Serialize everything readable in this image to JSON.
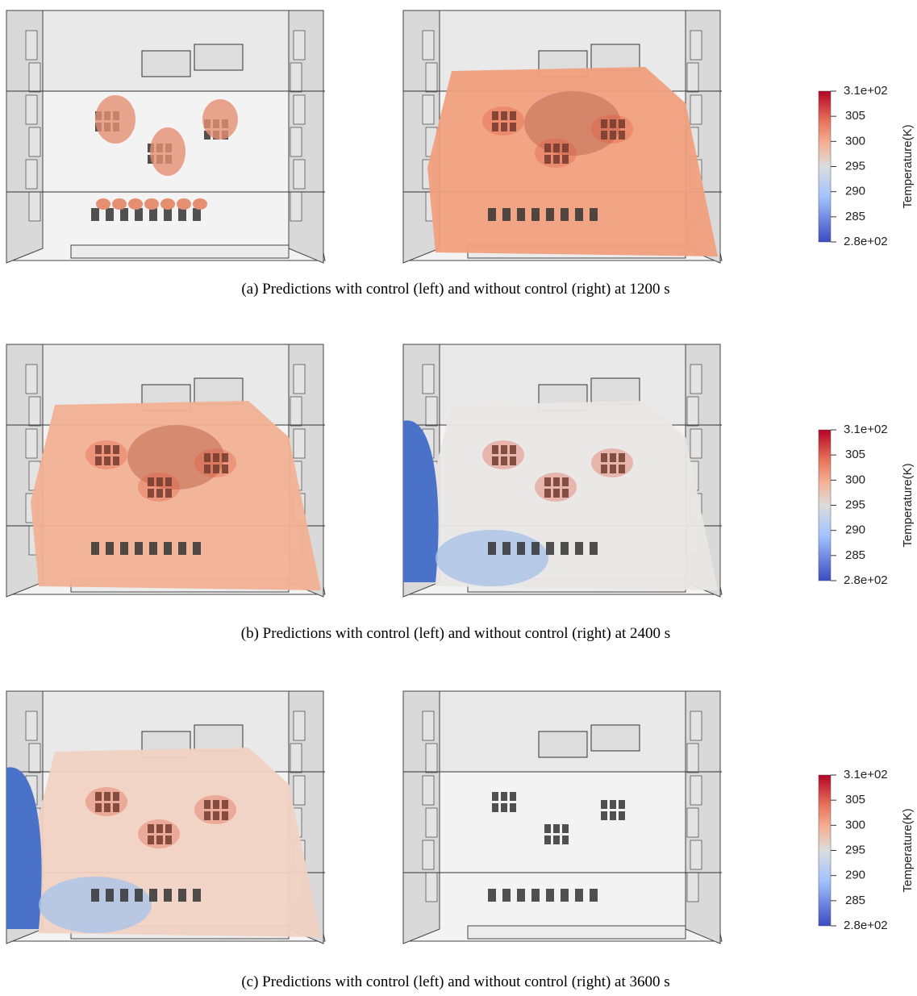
{
  "figure": {
    "rows": [
      {
        "caption": "(a) Predictions with control (left) and without control (right) at 1200 s",
        "colorbar": {
          "label": "Temperature(K)",
          "lim": [
            280,
            310
          ],
          "ticks": [
            {
              "value": 310,
              "label": "3.1e+02"
            },
            305,
            300,
            295,
            290,
            285,
            {
              "value": 280,
              "label": "2.8e+02"
            }
          ]
        }
      },
      {
        "caption": "(b) Predictions with control (left) and without control (right) at 2400 s",
        "colorbar": {
          "label": "Temperature(K)",
          "lim": [
            280,
            310
          ],
          "ticks": [
            {
              "value": 310,
              "label": "3.1e+02"
            },
            305,
            300,
            295,
            290,
            285,
            {
              "value": 280,
              "label": "2.8e+02"
            }
          ]
        }
      },
      {
        "caption": "(c) Predictions with control (left) and without control (right) at 3600 s",
        "colorbar": {
          "label": "Temperature(K)",
          "lim": [
            280,
            310
          ],
          "ticks": [
            {
              "value": 310,
              "label": "3.1e+02"
            },
            305,
            300,
            295,
            290,
            285,
            {
              "value": 280,
              "label": "2.8e+02"
            }
          ]
        }
      }
    ]
  }
}
